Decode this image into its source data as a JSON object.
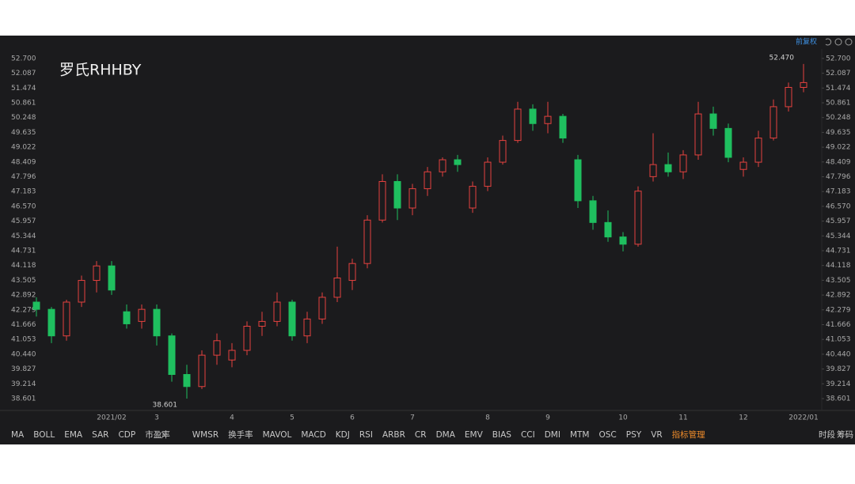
{
  "header": {
    "top_right": "前复权"
  },
  "chart_data": {
    "type": "candlestick",
    "title": "罗氏RHHBY",
    "categories": [
      null,
      null,
      null,
      null,
      null,
      "2021/02",
      null,
      null,
      "3",
      null,
      null,
      null,
      null,
      "4",
      null,
      null,
      null,
      "5",
      null,
      null,
      null,
      "6",
      null,
      null,
      null,
      "7",
      null,
      null,
      null,
      null,
      "8",
      null,
      null,
      null,
      "9",
      null,
      null,
      null,
      null,
      "10",
      null,
      null,
      null,
      "11",
      null,
      null,
      null,
      "12",
      null,
      null,
      null,
      "2022/01"
    ],
    "open": [
      42.6,
      42.3,
      41.2,
      42.6,
      43.5,
      44.1,
      42.2,
      41.8,
      42.3,
      41.2,
      39.6,
      39.1,
      40.4,
      40.2,
      40.6,
      41.6,
      41.8,
      42.6,
      41.2,
      41.9,
      42.8,
      43.5,
      44.2,
      46.0,
      47.6,
      46.5,
      47.3,
      48.0,
      48.5,
      46.5,
      47.4,
      48.4,
      49.3,
      50.6,
      50.0,
      50.3,
      48.5,
      46.8,
      45.9,
      45.3,
      45.0,
      47.8,
      48.3,
      48.0,
      48.7,
      50.4,
      49.8,
      48.1,
      48.4,
      49.4,
      50.7,
      51.5
    ],
    "high": [
      42.8,
      42.4,
      42.7,
      43.7,
      44.3,
      44.3,
      42.5,
      42.5,
      42.5,
      41.3,
      40.0,
      40.6,
      41.3,
      40.9,
      41.8,
      42.2,
      43.0,
      42.7,
      42.2,
      43.0,
      44.9,
      44.4,
      46.2,
      47.9,
      47.9,
      47.5,
      48.2,
      48.6,
      48.7,
      47.6,
      48.6,
      49.5,
      50.9,
      50.8,
      50.9,
      50.4,
      48.7,
      47.0,
      46.4,
      45.5,
      47.4,
      49.6,
      48.8,
      48.9,
      50.9,
      50.7,
      50.0,
      48.6,
      49.7,
      51.0,
      51.7,
      52.47
    ],
    "low": [
      42.0,
      40.9,
      41.0,
      42.4,
      43.0,
      42.9,
      41.5,
      41.5,
      40.8,
      39.3,
      38.601,
      39.0,
      40.0,
      39.9,
      40.4,
      41.2,
      41.6,
      41.0,
      40.9,
      41.7,
      42.6,
      43.1,
      44.0,
      45.9,
      46.0,
      46.2,
      47.0,
      47.8,
      48.0,
      46.3,
      47.2,
      48.3,
      49.2,
      49.7,
      49.6,
      49.2,
      46.5,
      45.6,
      45.1,
      44.7,
      44.9,
      47.6,
      47.8,
      47.7,
      48.5,
      49.5,
      48.4,
      47.8,
      48.2,
      49.3,
      50.5,
      51.3
    ],
    "close": [
      42.3,
      41.2,
      42.6,
      43.5,
      44.1,
      43.1,
      41.7,
      42.3,
      41.2,
      39.6,
      39.1,
      40.4,
      41.0,
      40.6,
      41.6,
      41.8,
      42.6,
      41.2,
      41.9,
      42.8,
      43.6,
      44.2,
      46.0,
      47.6,
      46.5,
      47.3,
      48.0,
      48.5,
      48.3,
      47.4,
      48.4,
      49.3,
      50.6,
      50.0,
      50.3,
      49.4,
      46.8,
      45.9,
      45.3,
      45.0,
      47.2,
      48.3,
      48.0,
      48.7,
      50.4,
      49.8,
      48.6,
      48.4,
      49.4,
      50.7,
      51.5,
      51.7
    ],
    "up_color": "#e5423f",
    "down_color": "#1fbf5f",
    "ylim": [
      38.24,
      53.09
    ],
    "yticks": [
      38.601,
      39.214,
      39.827,
      {
        "value": 40.44,
        "label": "40.440"
      },
      41.053,
      41.666,
      42.279,
      42.892,
      43.505,
      44.118,
      44.731,
      45.344,
      45.957,
      {
        "value": 46.57,
        "label": "46.570"
      },
      47.183,
      47.796,
      48.409,
      49.022,
      49.635,
      50.248,
      50.861,
      51.474,
      52.087,
      {
        "value": 52.7,
        "label": "52.700"
      }
    ],
    "annotations": [
      {
        "value": 52.47,
        "label": "52.470",
        "index": 51
      },
      {
        "value": 38.601,
        "label": "38.601",
        "index": 10
      }
    ]
  },
  "toolbar": {
    "items": [
      "MA",
      "BOLL",
      "EMA",
      "SAR",
      "CDP",
      "市盈率",
      "WMSR",
      "换手率",
      "MAVOL",
      "MACD",
      "KDJ",
      "RSI",
      "ARBR",
      "CR",
      "DMA",
      "EMV",
      "BIAS",
      "CCI",
      "DMI",
      "MTM",
      "OSC",
      "PSY",
      "VR",
      "指标管理"
    ],
    "right": [
      "时段",
      "筹码"
    ]
  }
}
